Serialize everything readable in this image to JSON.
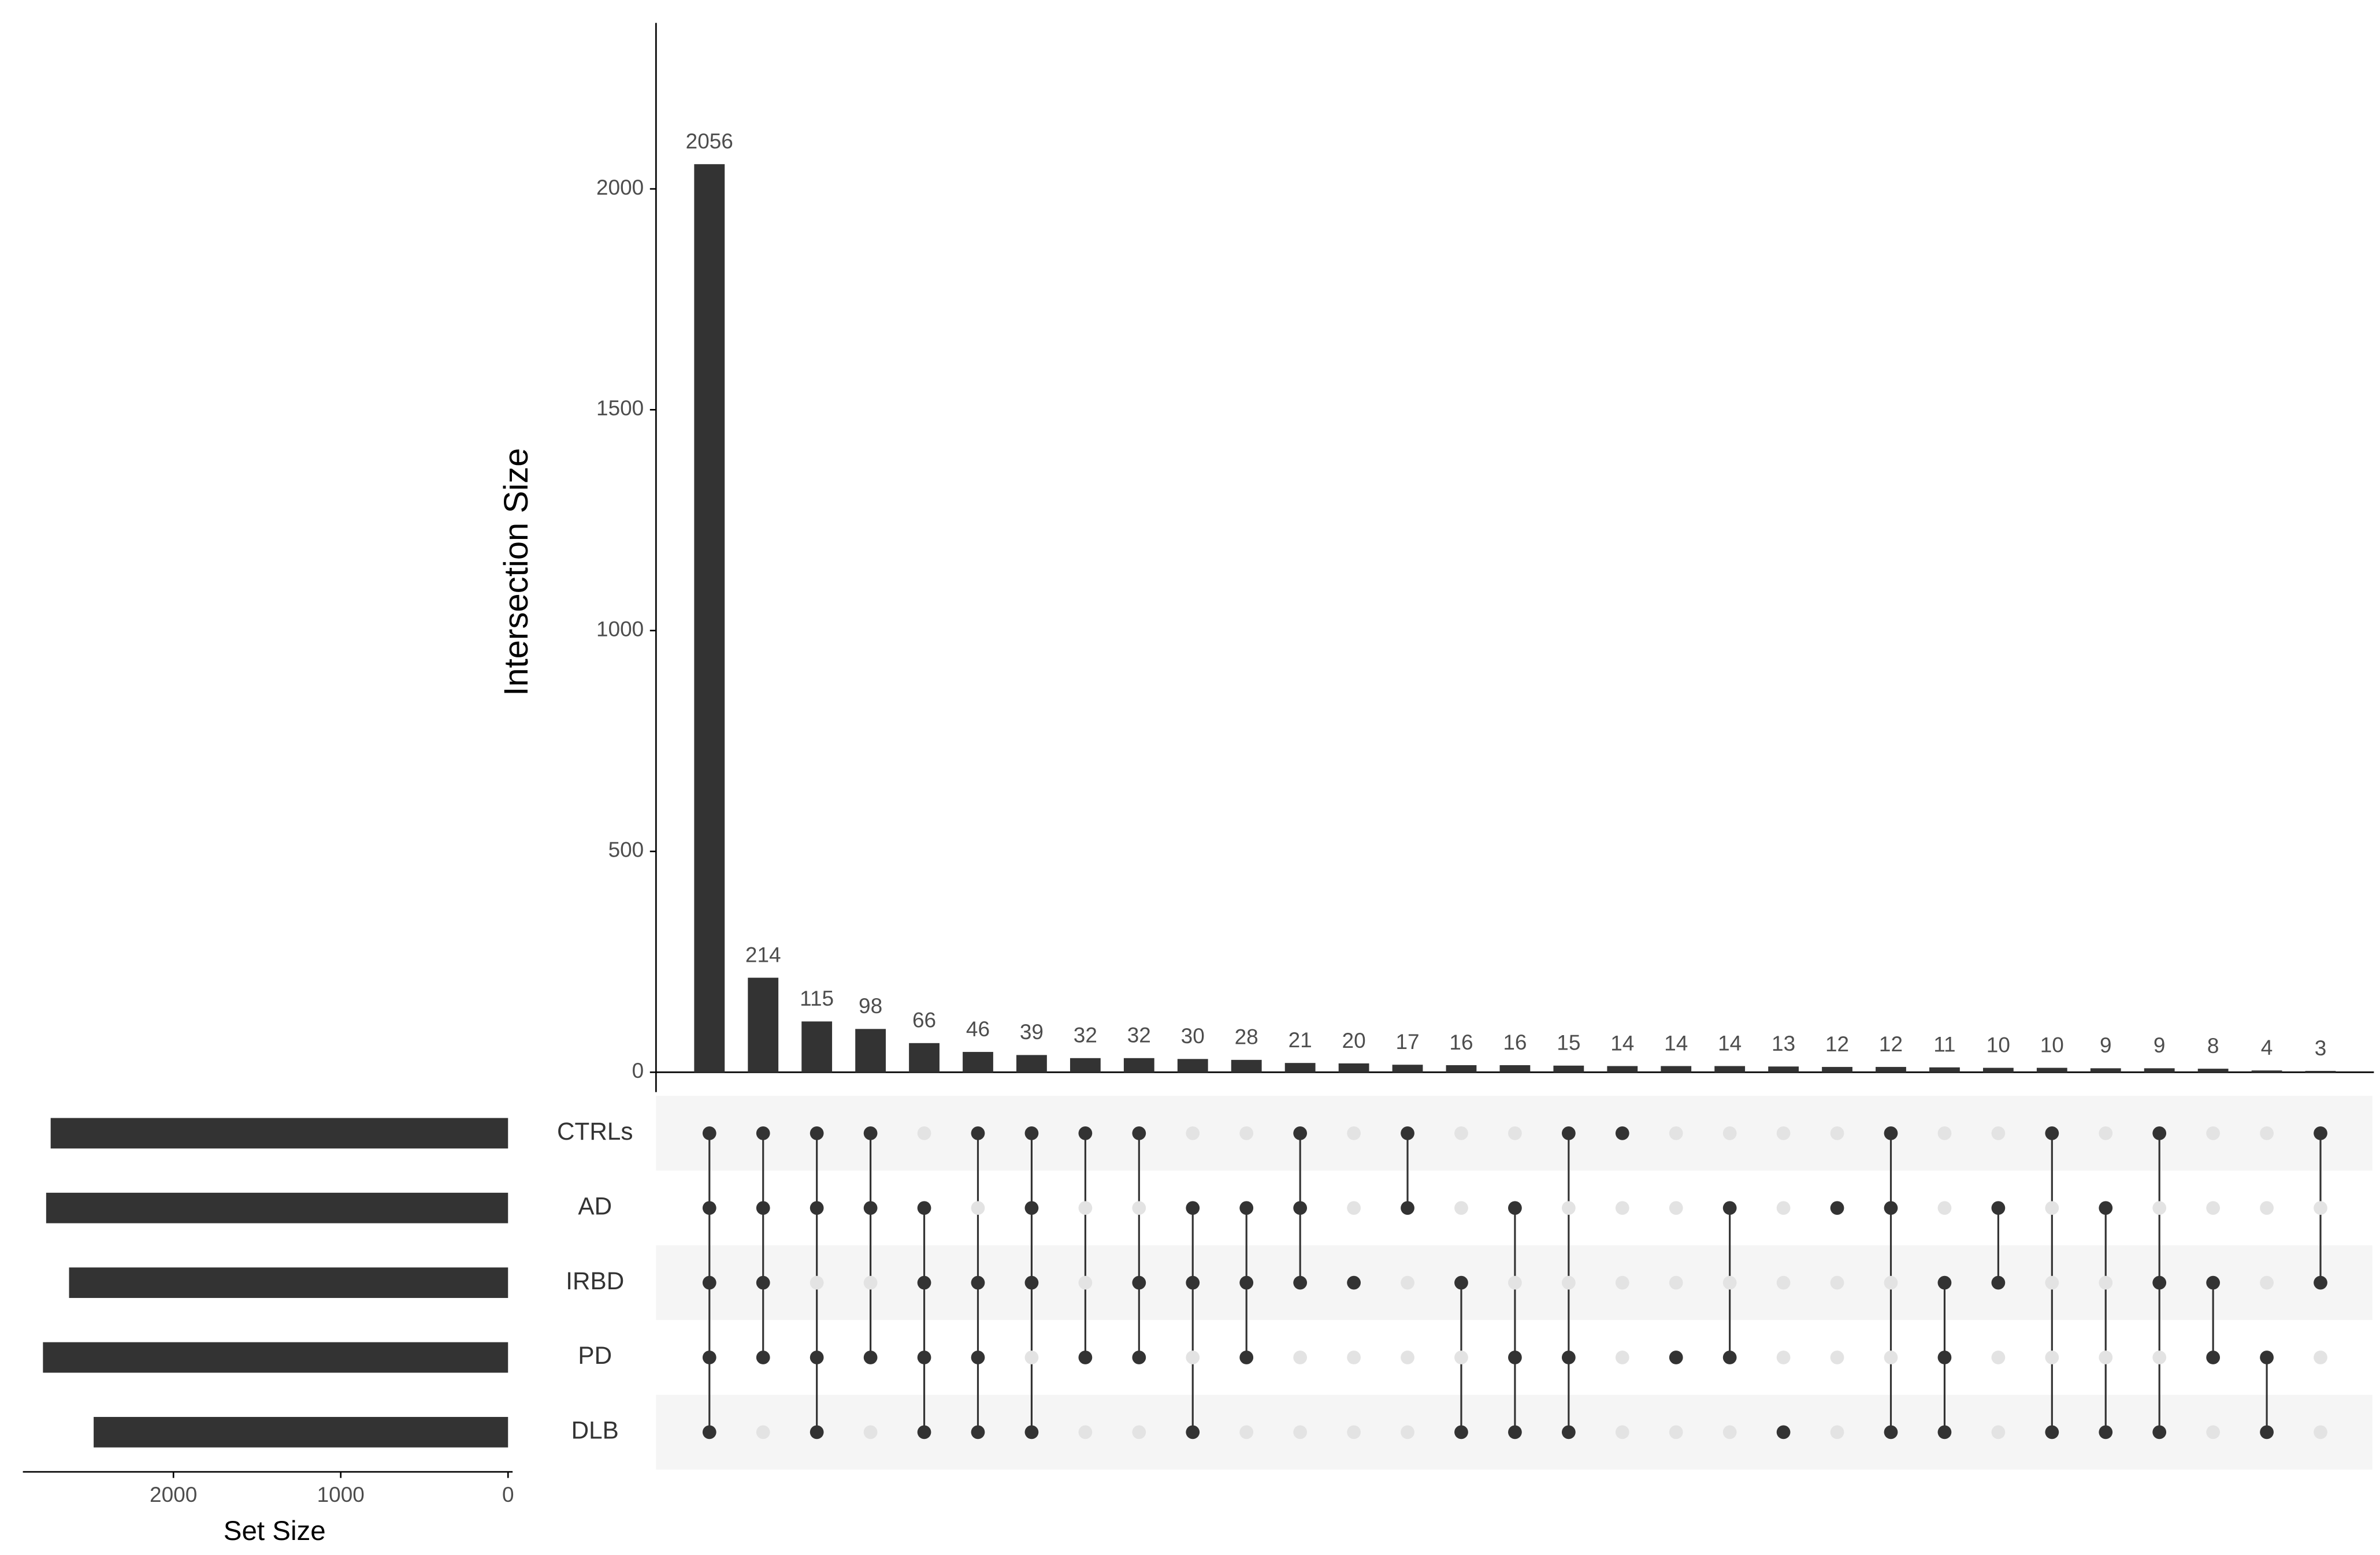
{
  "chart_data": {
    "type": "upset",
    "y_label": "Intersection Size",
    "x_label": "Set Size",
    "color": "#333333",
    "empty_color": "#e3e3e3",
    "stripe_color": "#f5f5f5",
    "ylim": [
      0,
      2400
    ],
    "yticks": [
      0,
      500,
      1000,
      1500,
      2000
    ],
    "values": [
      2056,
      214,
      115,
      98,
      66,
      46,
      39,
      32,
      32,
      30,
      28,
      21,
      20,
      17,
      16,
      16,
      15,
      14,
      14,
      14,
      13,
      12,
      12,
      11,
      10,
      10,
      9,
      9,
      8,
      4,
      3
    ],
    "sets": [
      "CTRLs",
      "AD",
      "IRBD",
      "PD",
      "DLB"
    ],
    "set_sizes": [
      2734,
      2761,
      2624,
      2780,
      2477
    ],
    "xlim": [
      0,
      2900
    ],
    "xticks": [
      0,
      1000,
      2000
    ],
    "membership": [
      [
        true,
        true,
        true,
        true,
        true
      ],
      [
        true,
        true,
        true,
        true,
        false
      ],
      [
        true,
        true,
        false,
        true,
        true
      ],
      [
        true,
        true,
        false,
        true,
        false
      ],
      [
        false,
        true,
        true,
        true,
        true
      ],
      [
        true,
        false,
        true,
        true,
        true
      ],
      [
        true,
        true,
        true,
        false,
        true
      ],
      [
        true,
        false,
        false,
        true,
        false
      ],
      [
        true,
        false,
        true,
        true,
        false
      ],
      [
        false,
        true,
        true,
        false,
        true
      ],
      [
        false,
        true,
        true,
        true,
        false
      ],
      [
        true,
        true,
        true,
        false,
        false
      ],
      [
        false,
        false,
        true,
        false,
        false
      ],
      [
        true,
        true,
        false,
        false,
        false
      ],
      [
        false,
        false,
        true,
        false,
        true
      ],
      [
        false,
        true,
        false,
        true,
        true
      ],
      [
        true,
        false,
        false,
        true,
        true
      ],
      [
        true,
        false,
        false,
        false,
        false
      ],
      [
        false,
        false,
        false,
        true,
        false
      ],
      [
        false,
        true,
        false,
        true,
        false
      ],
      [
        false,
        false,
        false,
        false,
        true
      ],
      [
        false,
        true,
        false,
        false,
        false
      ],
      [
        true,
        true,
        false,
        false,
        true
      ],
      [
        false,
        false,
        true,
        true,
        true
      ],
      [
        false,
        true,
        true,
        false,
        false
      ],
      [
        true,
        false,
        false,
        false,
        true
      ],
      [
        false,
        true,
        false,
        false,
        true
      ],
      [
        true,
        false,
        true,
        false,
        true
      ],
      [
        false,
        false,
        true,
        true,
        false
      ],
      [
        false,
        false,
        false,
        true,
        true
      ],
      [
        true,
        false,
        true,
        false,
        false
      ]
    ]
  }
}
